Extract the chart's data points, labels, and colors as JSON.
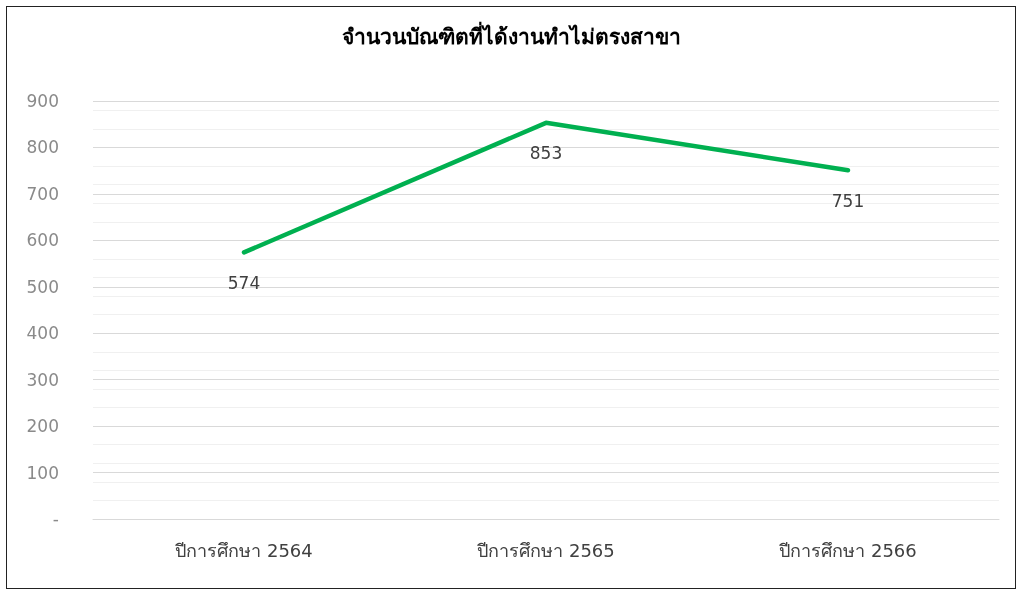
{
  "chart_data": {
    "type": "line",
    "title": "จำนวนบัณฑิตที่ได้งานทำไม่ตรงสาขา",
    "categories": [
      "ปีการศึกษา 2564",
      "ปีการศึกษา 2565",
      "ปีการศึกษา 2566"
    ],
    "series": [
      {
        "color": "#00b050",
        "values": [
          574,
          853,
          751
        ]
      }
    ],
    "ylim": [
      0,
      900
    ],
    "yticks": [
      {
        "value": 0,
        "label": "-"
      },
      100,
      200,
      300,
      400,
      500,
      600,
      700,
      800,
      900
    ],
    "grid": "y",
    "marker": "none",
    "line_style": "solid",
    "data_labels": true
  }
}
